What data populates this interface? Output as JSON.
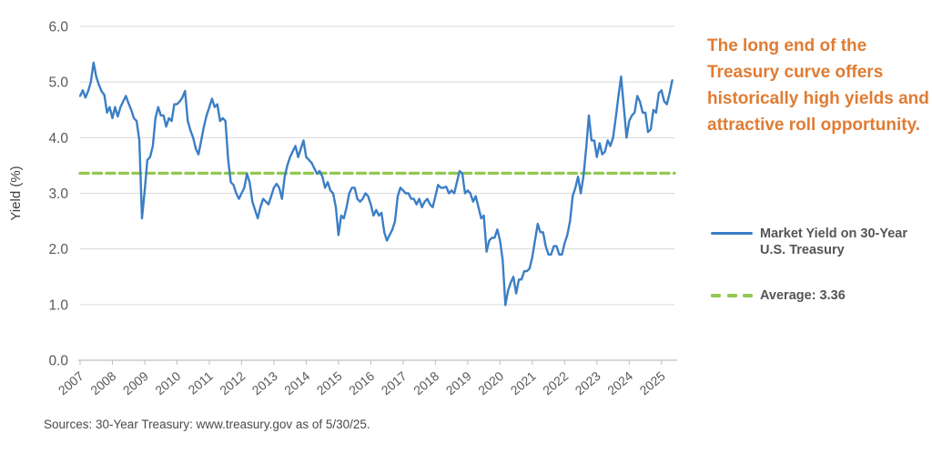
{
  "annotation": {
    "text": "The long end of the Treasury curve offers historically high yields and attractive roll opportunity.",
    "color": "#E07C33"
  },
  "source": {
    "text": "Sources: 30-Year Treasury: www.treasury.gov as of 5/30/25."
  },
  "legend": {
    "position": "right",
    "items": [
      {
        "label": "Market Yield on 30-Year U.S. Treasury",
        "marker": "solid-line",
        "color": "#3B7EC5"
      },
      {
        "label": "Average: 3.36",
        "marker": "dashed-line",
        "color": "#93C852"
      }
    ]
  },
  "chart_data": {
    "type": "line",
    "title": "",
    "xlabel": "",
    "ylabel": "Yield (%)",
    "ylim": [
      0,
      6
    ],
    "xlim": [
      2007,
      2025.4
    ],
    "y_ticks": [
      "0.0",
      "1.0",
      "2.0",
      "3.0",
      "4.0",
      "5.0",
      "6.0"
    ],
    "x_ticks": [
      "2007",
      "2008",
      "2009",
      "2010",
      "2011",
      "2012",
      "2013",
      "2014",
      "2015",
      "2016",
      "2017",
      "2018",
      "2019",
      "2020",
      "2021",
      "2022",
      "2023",
      "2024",
      "2025"
    ],
    "grid": "horizontal",
    "legend_position": "right",
    "colors": {
      "gridline": "#D9D9D9",
      "axis": "#BFBFBF",
      "tick_label": "#595959",
      "axis_title": "#3F3F3F"
    },
    "average_line": {
      "label": "Average: 3.36",
      "value": 3.36,
      "color": "#93C852",
      "style": "dashed"
    },
    "series": [
      {
        "name": "Market Yield on 30-Year U.S. Treasury",
        "color": "#3B7EC5",
        "start_year": 2007,
        "frequency": "monthly",
        "values": [
          4.75,
          4.85,
          4.72,
          4.84,
          5.0,
          5.35,
          5.1,
          4.95,
          4.83,
          4.77,
          4.45,
          4.55,
          4.35,
          4.55,
          4.38,
          4.55,
          4.65,
          4.75,
          4.62,
          4.5,
          4.35,
          4.3,
          3.95,
          2.55,
          3.05,
          3.6,
          3.65,
          3.85,
          4.35,
          4.55,
          4.4,
          4.4,
          4.2,
          4.35,
          4.3,
          4.6,
          4.6,
          4.65,
          4.72,
          4.84,
          4.3,
          4.13,
          4.0,
          3.8,
          3.7,
          3.95,
          4.2,
          4.4,
          4.55,
          4.7,
          4.55,
          4.6,
          4.3,
          4.35,
          4.3,
          3.6,
          3.2,
          3.15,
          3.0,
          2.9,
          3.0,
          3.1,
          3.35,
          3.2,
          2.85,
          2.7,
          2.55,
          2.75,
          2.9,
          2.85,
          2.8,
          2.95,
          3.1,
          3.17,
          3.1,
          2.9,
          3.3,
          3.5,
          3.65,
          3.75,
          3.85,
          3.65,
          3.8,
          3.95,
          3.65,
          3.6,
          3.55,
          3.45,
          3.35,
          3.4,
          3.3,
          3.1,
          3.2,
          3.05,
          3.0,
          2.75,
          2.25,
          2.6,
          2.55,
          2.75,
          3.0,
          3.1,
          3.1,
          2.9,
          2.85,
          2.9,
          3.0,
          2.95,
          2.8,
          2.6,
          2.7,
          2.6,
          2.65,
          2.3,
          2.15,
          2.25,
          2.35,
          2.5,
          2.95,
          3.1,
          3.05,
          3.0,
          3.0,
          2.9,
          2.9,
          2.8,
          2.9,
          2.75,
          2.85,
          2.9,
          2.8,
          2.75,
          2.95,
          3.15,
          3.1,
          3.1,
          3.12,
          3.0,
          3.05,
          3.0,
          3.2,
          3.4,
          3.35,
          3.0,
          3.05,
          3.0,
          2.85,
          2.95,
          2.75,
          2.55,
          2.6,
          1.95,
          2.15,
          2.2,
          2.2,
          2.35,
          2.15,
          1.8,
          0.99,
          1.25,
          1.4,
          1.5,
          1.2,
          1.45,
          1.45,
          1.6,
          1.6,
          1.65,
          1.85,
          2.15,
          2.45,
          2.3,
          2.3,
          2.05,
          1.9,
          1.9,
          2.05,
          2.05,
          1.9,
          1.9,
          2.1,
          2.25,
          2.5,
          2.95,
          3.1,
          3.3,
          3.0,
          3.3,
          3.8,
          4.4,
          3.95,
          3.95,
          3.65,
          3.9,
          3.7,
          3.75,
          3.95,
          3.85,
          4.0,
          4.35,
          4.75,
          5.1,
          4.55,
          4.0,
          4.3,
          4.4,
          4.45,
          4.75,
          4.65,
          4.45,
          4.45,
          4.1,
          4.15,
          4.5,
          4.45,
          4.8,
          4.85,
          4.65,
          4.6,
          4.8,
          5.03
        ]
      }
    ]
  }
}
